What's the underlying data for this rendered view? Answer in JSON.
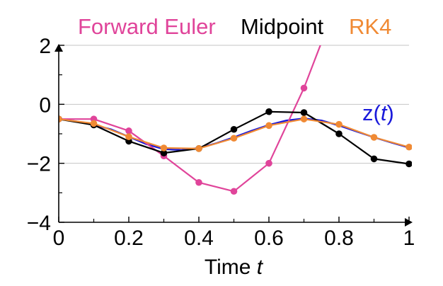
{
  "chart_data": {
    "type": "line",
    "xlabel_prefix": "Time ",
    "xlabel_var": "t",
    "ylabel": "",
    "xlim": [
      0,
      1
    ],
    "ylim": [
      -4,
      2
    ],
    "xticks": [
      0,
      0.2,
      0.4,
      0.6,
      0.8,
      1
    ],
    "xtick_labels": [
      "0",
      "0.2",
      "0.4",
      "0.6",
      "0.8",
      "1"
    ],
    "yticks": [
      -4,
      -2,
      0,
      2
    ],
    "ytick_labels": [
      "−4",
      "−2",
      "0",
      "2"
    ],
    "grid": "horizontal",
    "legend_placement": "top",
    "exact": {
      "name": "z(t)",
      "label_pre": "z(",
      "label_var": "t",
      "label_post": ")",
      "color": "#1a1adb",
      "x": [
        0,
        0.05,
        0.1,
        0.15,
        0.2,
        0.25,
        0.3,
        0.35,
        0.4,
        0.45,
        0.5,
        0.55,
        0.6,
        0.65,
        0.7,
        0.75,
        0.8,
        0.85,
        0.9,
        0.95,
        1.0
      ],
      "y": [
        -0.5,
        -0.58,
        -0.7,
        -0.85,
        -1.1,
        -1.35,
        -1.52,
        -1.55,
        -1.48,
        -1.32,
        -1.12,
        -0.9,
        -0.7,
        -0.55,
        -0.48,
        -0.55,
        -0.72,
        -0.92,
        -1.12,
        -1.3,
        -1.47
      ]
    },
    "series": [
      {
        "name": "Forward Euler",
        "color": "#e0449a",
        "x": [
          0,
          0.1,
          0.2,
          0.3,
          0.4,
          0.5,
          0.6,
          0.7,
          0.75
        ],
        "y": [
          -0.5,
          -0.5,
          -0.9,
          -1.75,
          -2.65,
          -2.95,
          -2.0,
          0.55,
          2.1
        ]
      },
      {
        "name": "Midpoint",
        "color": "#000000",
        "x": [
          0,
          0.1,
          0.2,
          0.3,
          0.4,
          0.5,
          0.6,
          0.7,
          0.8,
          0.9,
          1.0
        ],
        "y": [
          -0.5,
          -0.7,
          -1.25,
          -1.65,
          -1.5,
          -0.85,
          -0.25,
          -0.28,
          -1.0,
          -1.85,
          -2.02
        ]
      },
      {
        "name": "RK4",
        "color": "#f08a34",
        "x": [
          0,
          0.1,
          0.2,
          0.3,
          0.4,
          0.5,
          0.6,
          0.7,
          0.8,
          0.9,
          1.0
        ],
        "y": [
          -0.5,
          -0.65,
          -1.1,
          -1.48,
          -1.5,
          -1.15,
          -0.72,
          -0.5,
          -0.68,
          -1.12,
          -1.45
        ]
      }
    ]
  }
}
